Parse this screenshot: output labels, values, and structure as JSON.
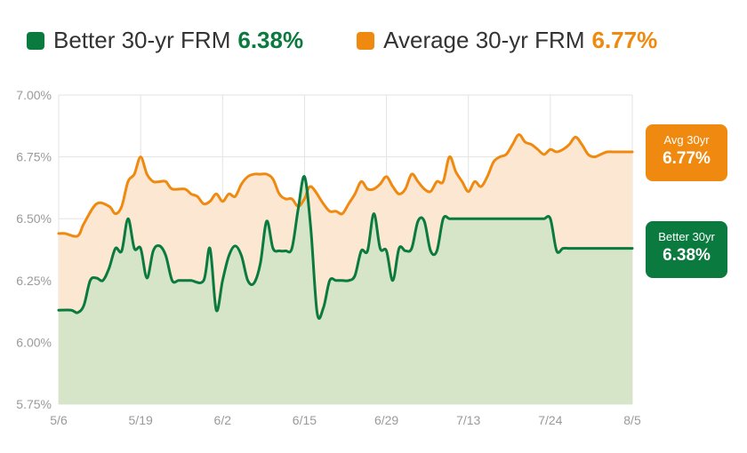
{
  "legend": {
    "better": {
      "label": "Better 30-yr FRM",
      "value": "6.38%"
    },
    "average": {
      "label": "Average 30-yr FRM",
      "value": "6.77%"
    }
  },
  "badges": {
    "average": {
      "label": "Avg 30yr",
      "value": "6.77%"
    },
    "better": {
      "label": "Better 30yr",
      "value": "6.38%"
    }
  },
  "colors": {
    "better": "#0a7a3e",
    "average": "#f0890f",
    "better_fill": "#d6e4c8",
    "average_fill": "#fce7d2",
    "grid": "#e3e3e3"
  },
  "chart_data": {
    "type": "area",
    "x_ticks": [
      "5/6",
      "5/19",
      "6/2",
      "6/15",
      "6/29",
      "7/13",
      "7/24",
      "8/5"
    ],
    "y_ticks": [
      "7.00%",
      "6.75%",
      "6.50%",
      "6.25%",
      "6.00%",
      "5.75%"
    ],
    "ylim": [
      5.75,
      7.0
    ],
    "x_range": [
      0,
      91
    ],
    "series": [
      {
        "name": "Average 30-yr FRM",
        "x": [
          0,
          1,
          3,
          4,
          6,
          8,
          9,
          10,
          11,
          12,
          13,
          14,
          15,
          16,
          17,
          18,
          20,
          21,
          22,
          23,
          24,
          25,
          26,
          27,
          28,
          29,
          30,
          31,
          32,
          33,
          34,
          35,
          36,
          37,
          38,
          39,
          40,
          42,
          43,
          44,
          45,
          46,
          47,
          48,
          49,
          50,
          51,
          52,
          53,
          54,
          55,
          56,
          57,
          58,
          59,
          60,
          61,
          62,
          63,
          64,
          65,
          66,
          67,
          68,
          69,
          70,
          71,
          72,
          73,
          74,
          75,
          76,
          77,
          78,
          79,
          80,
          81,
          82,
          83,
          84,
          85,
          86,
          87,
          88,
          89,
          90,
          91
        ],
        "values": [
          6.44,
          6.44,
          6.43,
          6.48,
          6.56,
          6.55,
          6.52,
          6.55,
          6.65,
          6.68,
          6.75,
          6.68,
          6.65,
          6.65,
          6.65,
          6.62,
          6.62,
          6.6,
          6.59,
          6.56,
          6.57,
          6.6,
          6.57,
          6.6,
          6.59,
          6.64,
          6.67,
          6.68,
          6.68,
          6.68,
          6.66,
          6.6,
          6.58,
          6.58,
          6.55,
          6.58,
          6.63,
          6.56,
          6.53,
          6.53,
          6.52,
          6.56,
          6.6,
          6.65,
          6.62,
          6.62,
          6.64,
          6.67,
          6.63,
          6.6,
          6.62,
          6.68,
          6.65,
          6.62,
          6.61,
          6.65,
          6.65,
          6.75,
          6.69,
          6.65,
          6.61,
          6.65,
          6.63,
          6.67,
          6.73,
          6.75,
          6.76,
          6.8,
          6.84,
          6.81,
          6.8,
          6.78,
          6.76,
          6.78,
          6.77,
          6.78,
          6.8,
          6.83,
          6.8,
          6.76,
          6.75,
          6.76,
          6.77,
          6.77,
          6.77,
          6.77,
          6.77
        ]
      },
      {
        "name": "Better 30-yr FRM",
        "x": [
          0,
          2,
          3,
          4,
          5,
          6,
          7,
          8,
          9,
          10,
          11,
          12,
          13,
          14,
          15,
          16,
          17,
          18,
          19,
          20,
          21,
          23,
          24,
          25,
          26,
          27,
          28,
          29,
          30,
          31,
          32,
          33,
          34,
          35,
          36,
          37,
          38,
          39,
          40,
          41,
          42,
          43,
          44,
          45,
          46,
          47,
          48,
          49,
          50,
          51,
          52,
          53,
          54,
          55,
          56,
          57,
          58,
          59,
          60,
          61,
          62,
          63,
          64,
          65,
          66,
          67,
          68,
          69,
          70,
          71,
          72,
          73,
          74,
          75,
          76,
          77,
          78,
          79,
          80,
          81,
          82,
          83,
          84,
          85,
          86,
          87,
          88,
          89,
          90,
          91
        ],
        "values": [
          6.13,
          6.13,
          6.12,
          6.15,
          6.25,
          6.26,
          6.25,
          6.3,
          6.38,
          6.37,
          6.5,
          6.38,
          6.38,
          6.26,
          6.37,
          6.39,
          6.35,
          6.25,
          6.25,
          6.25,
          6.25,
          6.25,
          6.38,
          6.13,
          6.25,
          6.35,
          6.39,
          6.35,
          6.25,
          6.24,
          6.32,
          6.49,
          6.38,
          6.37,
          6.37,
          6.38,
          6.54,
          6.67,
          6.46,
          6.12,
          6.14,
          6.25,
          6.25,
          6.25,
          6.25,
          6.27,
          6.37,
          6.37,
          6.52,
          6.38,
          6.37,
          6.25,
          6.38,
          6.37,
          6.38,
          6.49,
          6.49,
          6.37,
          6.37,
          6.5,
          6.5,
          6.5,
          6.5,
          6.5,
          6.5,
          6.5,
          6.5,
          6.5,
          6.5,
          6.5,
          6.5,
          6.5,
          6.5,
          6.5,
          6.5,
          6.5,
          6.5,
          6.37,
          6.38,
          6.38,
          6.38,
          6.38,
          6.38,
          6.38,
          6.38,
          6.38,
          6.38,
          6.38,
          6.38,
          6.38
        ]
      }
    ]
  }
}
